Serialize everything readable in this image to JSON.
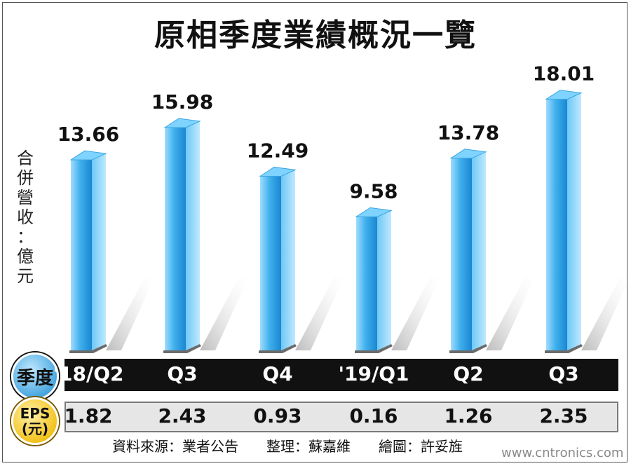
{
  "title": "原相季度業績概況一覽",
  "ylabel_chars": [
    "合",
    "併",
    "營",
    "收",
    "：",
    "億",
    "元"
  ],
  "season_label": "季度",
  "eps_label_line1": "EPS",
  "eps_label_line2": "(元)",
  "source_text": "資料來源：業者公告　　整理：蘇嘉維　　繪圖：許妥旌",
  "watermark": "www.cntronics.com",
  "colors": {
    "bar_light": "#bfe9ff",
    "bar_mid": "#48b8ee",
    "bar_dark": "#1478c8",
    "bar_top": "#7fd3ff",
    "season_band": "#111111",
    "eps_band": "#e6e6e6"
  },
  "chart_data": {
    "type": "bar",
    "ylabel": "合併營收：億元",
    "categories": [
      "'18/Q2",
      "Q3",
      "Q4",
      "'19/Q1",
      "Q2",
      "Q3"
    ],
    "values": [
      13.66,
      15.98,
      12.49,
      9.58,
      13.78,
      18.01
    ],
    "value_labels": [
      "13.66",
      "15.98",
      "12.49",
      "9.58",
      "13.78",
      "18.01"
    ],
    "eps": [
      "1.82",
      "2.43",
      "0.93",
      "0.16",
      "1.26",
      "2.35"
    ],
    "grid": false,
    "legend": "none"
  }
}
